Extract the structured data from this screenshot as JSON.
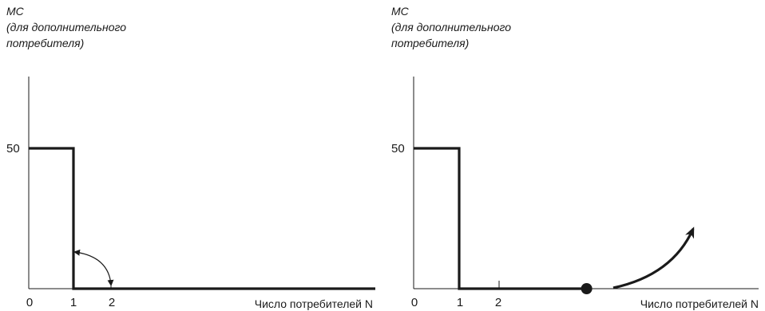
{
  "chart_data": [
    {
      "type": "line",
      "ylabel_lines": [
        "MC",
        "(для дополнительного",
        "потребителя)"
      ],
      "xlabel": "Число потребителей N",
      "x_ticks": [
        "0",
        "1",
        "2"
      ],
      "y_ticks": [
        "50"
      ],
      "series": [
        {
          "x": [
            0,
            1,
            1,
            8.6
          ],
          "y": [
            50,
            50,
            0,
            0
          ]
        }
      ]
    },
    {
      "type": "line",
      "ylabel_lines": [
        "MC",
        "(для дополнительного",
        "потребителя)"
      ],
      "xlabel": "Число потребителей N",
      "x_ticks": [
        "0",
        "1",
        "2"
      ],
      "y_ticks": [
        "50"
      ],
      "series": [
        {
          "x": [
            0,
            1,
            1,
            3.8
          ],
          "y": [
            50,
            50,
            0,
            0
          ]
        }
      ],
      "highlight_point": {
        "x": 3.8,
        "y": 0
      }
    }
  ]
}
